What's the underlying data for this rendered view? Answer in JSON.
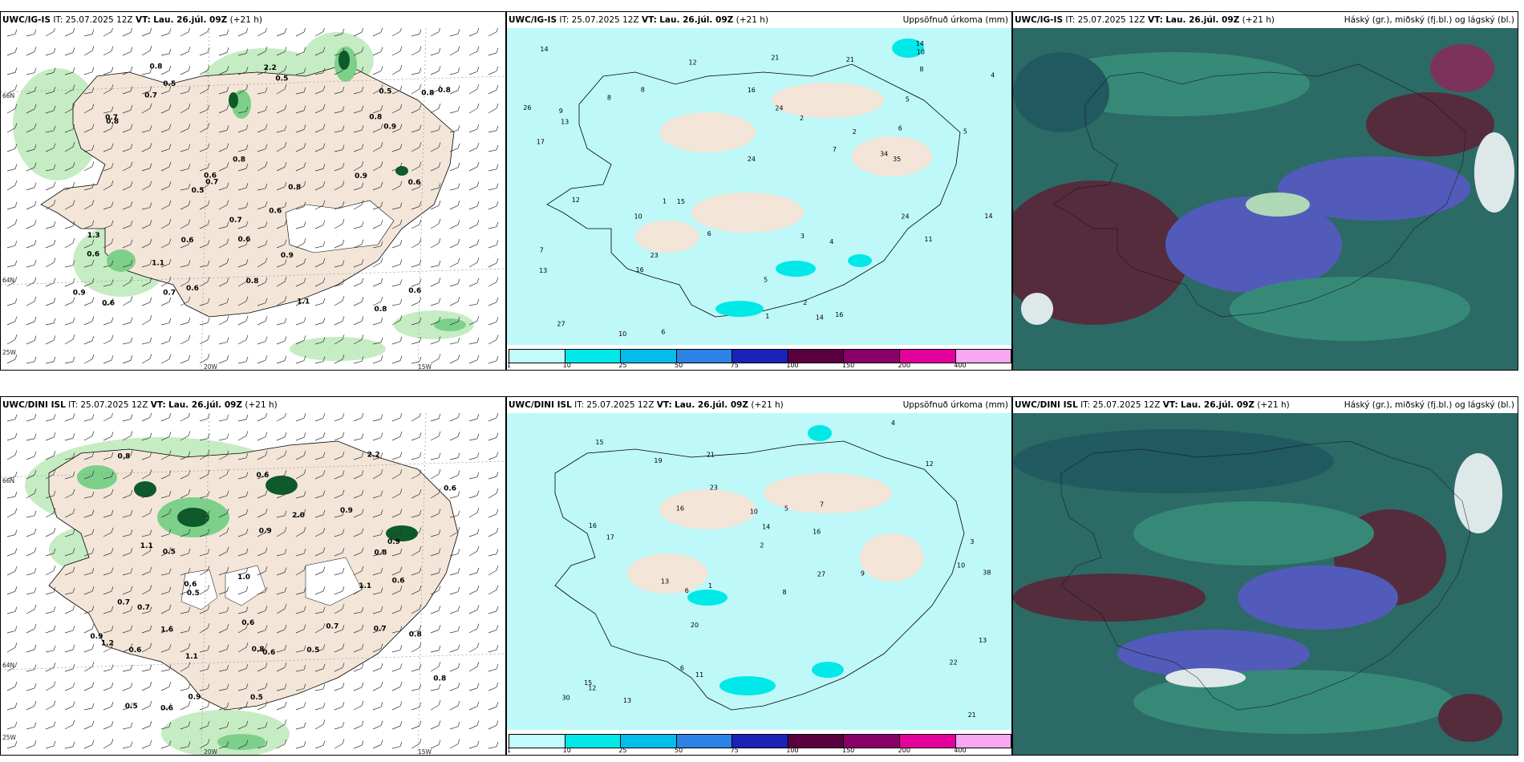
{
  "rows": [
    {
      "model": "UWC/IG-IS",
      "it_label": "IT:",
      "it": "25.07.2025 12Z",
      "vt_label": "VT:",
      "vt": "Lau. 26.júl. 09Z",
      "lead": "(+21 h)",
      "precip_label": "Uppsöfnuð úrkoma (mm)",
      "cloud_label": "Háský (gr.), miðský (fj.bl.) og lágský (bl.)",
      "wind_values": [
        "0.7",
        "0.6",
        "0.7",
        "0.8",
        "0.6",
        "0.8",
        "0.8",
        "0.7",
        "0.6",
        "0.8",
        "0.8",
        "0.5",
        "0.7",
        "0.8",
        "0.6",
        "0.5",
        "0.6",
        "0.9",
        "2.2",
        "1.1",
        "1.3",
        "0.6",
        "0.9",
        "0.8",
        "0.7",
        "0.6",
        "1.1",
        "0.9",
        "0.5",
        "0.5",
        "0.6",
        "0.6",
        "0.8",
        "0.8",
        "0.9"
      ],
      "precip_values": [
        "6",
        "2",
        "24",
        "21",
        "12",
        "17",
        "5",
        "7",
        "11",
        "12",
        "8",
        "15",
        "24",
        "10",
        "6",
        "5",
        "8",
        "2",
        "14",
        "26",
        "13",
        "10",
        "14",
        "16",
        "23",
        "14",
        "16",
        "24",
        "13",
        "16",
        "35",
        "34",
        "27",
        "21",
        "14",
        "5",
        "7",
        "9",
        "10",
        "4",
        "6",
        "3",
        "2",
        "8",
        "1",
        "1",
        "4"
      ]
    },
    {
      "model": "UWC/DINI ISL",
      "it_label": "IT:",
      "it": "25.07.2025 12Z",
      "vt_label": "VT:",
      "vt": "Lau. 26.júl. 09Z",
      "lead": "(+21 h)",
      "precip_label": "Uppsöfnuð úrkoma (mm)",
      "cloud_label": "Háský (gr.), miðský (fj.bl.) og lágský (bl.)",
      "wind_values": [
        "0.6",
        "0.7",
        "0.6",
        "1.1",
        "0.8",
        "0.9",
        "0.7",
        "0.6",
        "1.1",
        "0.9",
        "0.5",
        "0.7",
        "1.0",
        "1.2",
        "0.8",
        "2.0",
        "0.6",
        "0.5",
        "0.9",
        "2.2",
        "0.6",
        "0.6",
        "1.6",
        "0.6",
        "0.8",
        "0.5",
        "0.9",
        "0.5",
        "0.7",
        "0.8",
        "0.6",
        "0.5",
        "0.8",
        "1.1",
        "0.9"
      ],
      "precip_values": [
        "6",
        "21",
        "10",
        "13",
        "15",
        "16",
        "30",
        "20",
        "13",
        "19",
        "16",
        "12",
        "15",
        "23",
        "27",
        "38",
        "22",
        "21",
        "16",
        "17",
        "12",
        "13",
        "5",
        "8",
        "4",
        "11",
        "14",
        "10",
        "3",
        "6",
        "9",
        "7",
        "1",
        "2"
      ]
    }
  ],
  "axes": {
    "lat_66": "66N",
    "lat_64": "64N",
    "lat_25w": "25W",
    "lon_20w": "20W",
    "lon_15w": "15W"
  },
  "legend": {
    "ticks": [
      "1",
      "10",
      "25",
      "50",
      "75",
      "100",
      "150",
      "200",
      "400"
    ],
    "colors": [
      "#c2fbfb",
      "#00e8e8",
      "#00bdea",
      "#2d82e6",
      "#1a22b8",
      "#5a0040",
      "#8a006a",
      "#e4009b",
      "#f5a8f0"
    ]
  },
  "palette": {
    "land": "#f3e6d8",
    "green_light": "#c6ecc4",
    "green_mid": "#7cd08a",
    "green_dark": "#0e5a2a",
    "precip_bg": "#bff8f8",
    "cloud_high": "#5b2235",
    "cloud_mid": "#5959c9",
    "cloud_low": "#2c6a66"
  }
}
